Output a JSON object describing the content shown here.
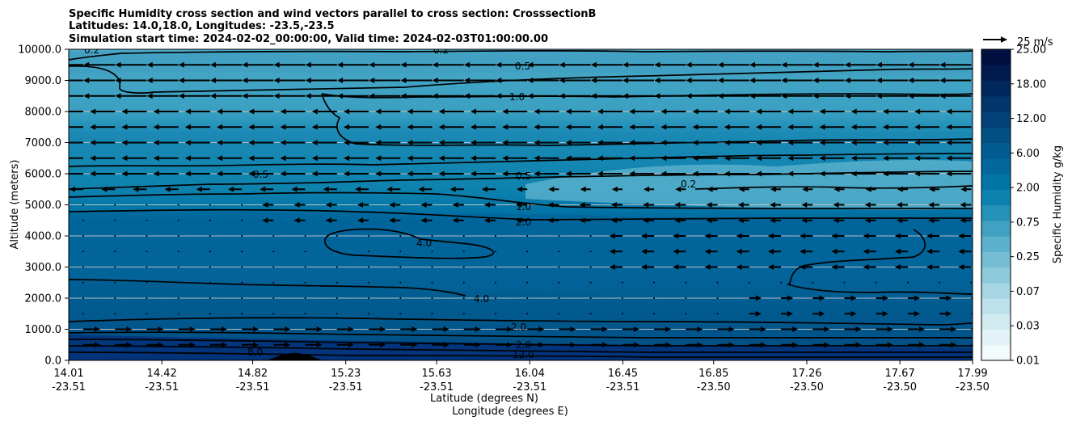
{
  "chart_data": {
    "type": "heatmap",
    "title_lines": [
      "Specific Humidity cross section and wind vectors parallel to cross section: CrosssectionB",
      "Latitudes: 14.0,18.0, Longitudes: -23.5,-23.5",
      "Simulation start time: 2024-02-02_00:00:00, Valid time: 2024-02-03T01:00:00.00"
    ],
    "ylabel": "Altitude (meters)",
    "xlabel_lat": "Latitude (degrees N)",
    "xlabel_lon": "Longitude (degrees E)",
    "ylim": [
      0,
      10000
    ],
    "y_ticks": [
      "0.0",
      "1000.0",
      "2000.0",
      "3000.0",
      "4000.0",
      "5000.0",
      "6000.0",
      "7000.0",
      "8000.0",
      "9000.0",
      "10000.0"
    ],
    "x_range": [
      14.01,
      17.99
    ],
    "x_ticks_lat": [
      "14.01",
      "14.42",
      "14.82",
      "15.23",
      "15.63",
      "16.04",
      "16.45",
      "16.85",
      "17.26",
      "17.67",
      "17.99"
    ],
    "x_ticks_lon": [
      "-23.51",
      "-23.51",
      "-23.51",
      "-23.51",
      "-23.51",
      "-23.51",
      "-23.51",
      "-23.50",
      "-23.50",
      "-23.50",
      "-23.50"
    ],
    "colorbar_label": "Specific Humidity g/kg",
    "colorbar_ticks": [
      "0.01",
      "0.03",
      "0.07",
      "0.25",
      "0.75",
      "2.00",
      "6.00",
      "12.00",
      "18.00",
      "25.00"
    ],
    "quiver_key": "25 m/s",
    "contour_labels": [
      "0.2",
      "0.5",
      "1.0",
      "2.0",
      "4.0",
      "8.0",
      "12.0"
    ],
    "colors": {
      "levels": [
        "#f2fafc",
        "#e2f2f6",
        "#d0eaf0",
        "#bce1ea",
        "#a6d6e3",
        "#8dcadb",
        "#74bdd3",
        "#5bb0cb",
        "#40a1c2",
        "#2592b8",
        "#0e82ae",
        "#0274a6",
        "#02689c",
        "#025c91",
        "#024f84",
        "#024277",
        "#02356a",
        "#01285c",
        "#011b4e",
        "#010f41"
      ],
      "air_dry": "#5aafca",
      "air_mid": "#1f8db6",
      "boundary": "#0269a0",
      "surface": "#01307a",
      "terrain": "#000000"
    }
  }
}
